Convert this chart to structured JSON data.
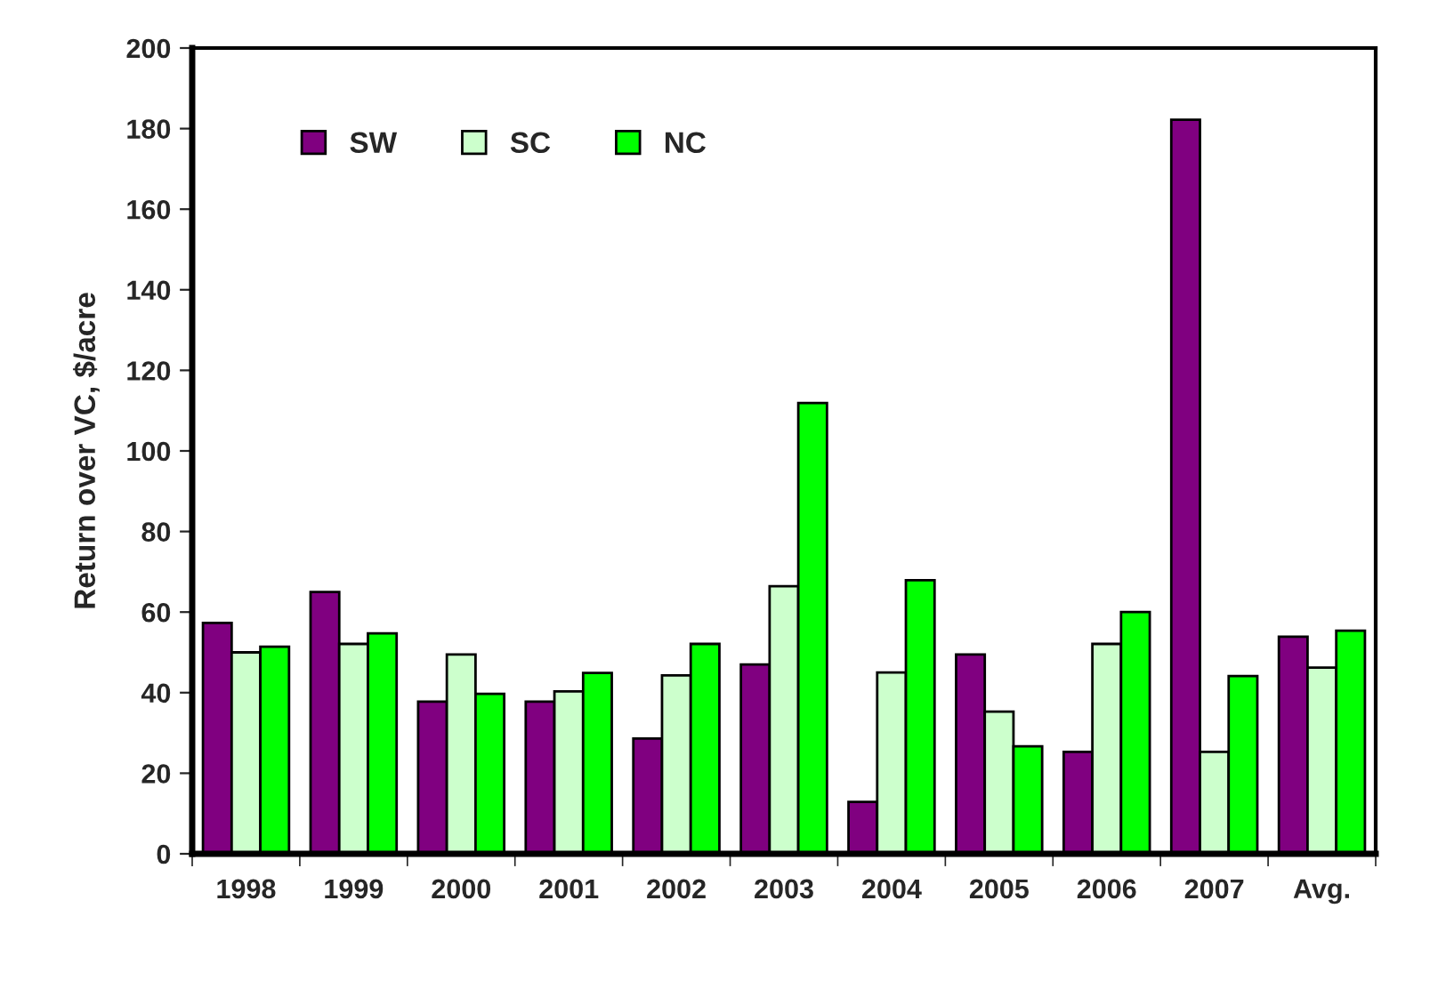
{
  "chart_data": {
    "type": "bar",
    "ylabel": "Return over VC, $/acre",
    "categories": [
      "1998",
      "1999",
      "2000",
      "2001",
      "2002",
      "2003",
      "2004",
      "2005",
      "2006",
      "2007",
      "Avg."
    ],
    "series": [
      {
        "name": "SW",
        "color": "#800080",
        "values": [
          57.3,
          65,
          37.8,
          37.8,
          28.6,
          47,
          12.9,
          49.5,
          25.3,
          182.2,
          53.9
        ]
      },
      {
        "name": "SC",
        "color": "#ccffcc",
        "values": [
          50,
          52.1,
          49.5,
          40.3,
          44.3,
          66.4,
          45,
          35.3,
          52.1,
          25.3,
          46.2
        ]
      },
      {
        "name": "NC",
        "color": "#00ff00",
        "values": [
          51.4,
          54.7,
          39.7,
          44.9,
          52.1,
          111.9,
          67.9,
          26.7,
          60,
          44.1,
          55.4
        ]
      }
    ],
    "ylim": [
      0,
      200
    ],
    "yticks": [
      0,
      20,
      40,
      60,
      80,
      100,
      120,
      140,
      160,
      180,
      200
    ],
    "grid": false,
    "legend": "top left"
  }
}
